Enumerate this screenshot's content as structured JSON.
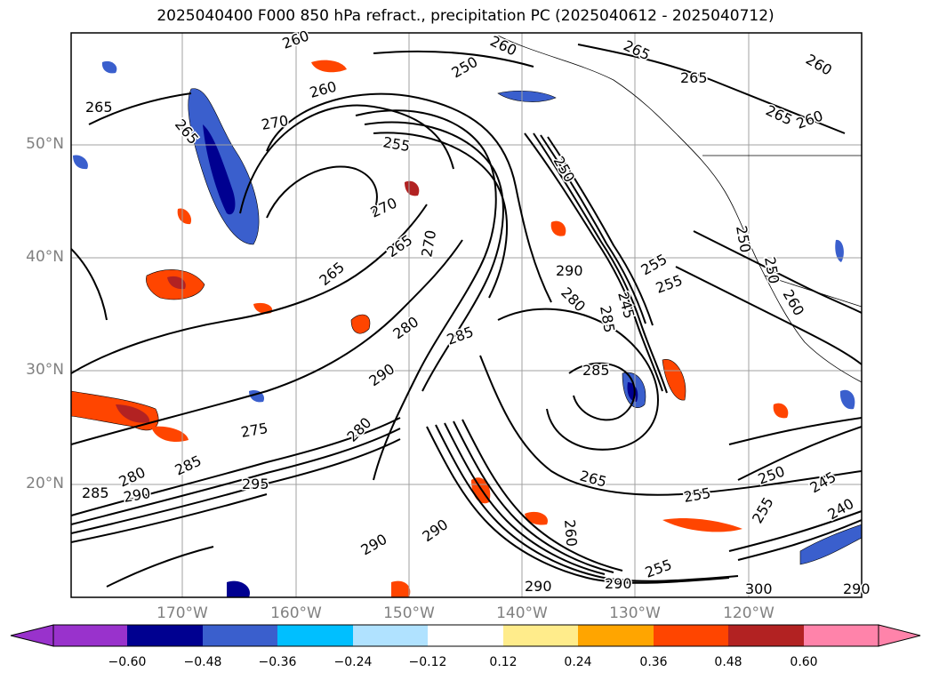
{
  "title": "2025040400 F000 850 hPa refract., precipitation PC (2025040612 - 2025040712)",
  "map": {
    "lat_labels": [
      "50°N",
      "40°N",
      "30°N",
      "20°N"
    ],
    "lon_labels": [
      "170°W",
      "160°W",
      "150°W",
      "140°W",
      "130°W",
      "120°W"
    ],
    "contour_labels": [
      "265",
      "265",
      "270",
      "260",
      "250",
      "260",
      "265",
      "265",
      "260",
      "265",
      "260",
      "255",
      "270",
      "265",
      "270",
      "265",
      "260",
      "250",
      "255",
      "250",
      "285",
      "290",
      "280",
      "245",
      "285",
      "250",
      "255",
      "260",
      "285",
      "280",
      "290",
      "280",
      "275",
      "265",
      "285",
      "280",
      "285",
      "290",
      "295",
      "290",
      "290",
      "255",
      "250",
      "245",
      "240",
      "260",
      "255",
      "255",
      "290",
      "290",
      "300",
      "290"
    ]
  },
  "colorbar": {
    "colors": [
      "#9932cc",
      "#000090",
      "#3a5fcd",
      "#00bfff",
      "#b0e2ff",
      "#ffffff",
      "#ffec8b",
      "#ffa500",
      "#ff4500",
      "#b22222",
      "#ff83aa"
    ],
    "ticks": [
      "−0.60",
      "−0.48",
      "−0.36",
      "−0.24",
      "−0.12",
      "0.12",
      "0.24",
      "0.36",
      "0.48",
      "0.60"
    ]
  }
}
